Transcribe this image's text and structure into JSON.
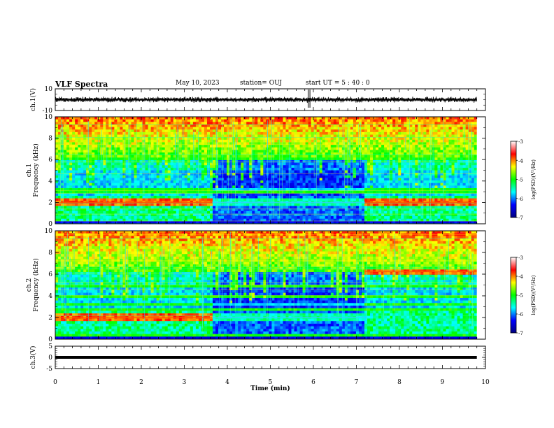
{
  "header": {
    "title": "VLF Spectra",
    "date": "May 10, 2023",
    "station": "station= OUJ",
    "start": "start  UT =   5 : 40 : 0"
  },
  "chart_data": [
    {
      "type": "line",
      "panel": "ch.1 waveform",
      "ylabel": "ch.1(V)",
      "ylim": [
        -10,
        10
      ],
      "yticks": [
        "10",
        "-10"
      ],
      "xlim": [
        0,
        10
      ],
      "mean_value": 0,
      "spikes_at_min": [
        5.88,
        5.92
      ]
    },
    {
      "type": "heatmap",
      "panel": "ch.1 spectrogram",
      "ylabel": "ch.1\nFrequency (kHz)",
      "ylim": [
        0,
        10
      ],
      "yticks": [
        "0",
        "2",
        "4",
        "6",
        "8",
        "10"
      ],
      "xlim": [
        0,
        10
      ],
      "data_end_min": 9.8,
      "colorbar": {
        "label": "log(PSD)(V²/Hz)",
        "range": [
          -7,
          -3
        ],
        "ticks": [
          "-3",
          "-4",
          "-5",
          "-6",
          "-7"
        ]
      },
      "regimes": [
        {
          "x": [
            0,
            3.65
          ],
          "level": "high",
          "band_kHz": [
            1.7,
            2.3
          ]
        },
        {
          "x": [
            3.65,
            7.2
          ],
          "level": "low",
          "band_kHz": [
            1.7,
            2.3
          ]
        },
        {
          "x": [
            7.2,
            9.8
          ],
          "level": "high",
          "band_kHz": [
            1.7,
            2.3
          ]
        }
      ]
    },
    {
      "type": "heatmap",
      "panel": "ch.2 spectrogram",
      "ylabel": "ch.2\nFrequency (kHz)",
      "ylim": [
        0,
        10
      ],
      "yticks": [
        "0",
        "2",
        "4",
        "6",
        "8",
        "10"
      ],
      "xlim": [
        0,
        10
      ],
      "data_end_min": 9.8,
      "colorbar": {
        "label": "log(PSD)(V²/Hz)",
        "range": [
          -7,
          -3
        ],
        "ticks": [
          "-3",
          "-4",
          "-5",
          "-6",
          "-7"
        ]
      },
      "regimes": [
        {
          "x": [
            0,
            3.65
          ],
          "level": "high",
          "band_kHz": [
            1.7,
            2.3
          ]
        },
        {
          "x": [
            3.65,
            7.2
          ],
          "level": "low",
          "band_kHz": [
            1.7,
            2.3
          ]
        },
        {
          "x": [
            7.2,
            9.8
          ],
          "level": "high",
          "band_kHz": [
            6.0,
            6.5
          ]
        }
      ]
    },
    {
      "type": "line",
      "panel": "ch.3 waveform",
      "ylabel": "ch.3(V)",
      "ylim": [
        -5,
        5
      ],
      "yticks": [
        "5",
        "0",
        "-5"
      ],
      "xlim": [
        0,
        10
      ],
      "value": 0
    }
  ],
  "xaxis": {
    "label": "Time (min)",
    "ticks": [
      "0",
      "1",
      "2",
      "3",
      "4",
      "5",
      "6",
      "7",
      "8",
      "9",
      "10"
    ]
  },
  "colors": {
    "colormap": [
      "#000080",
      "#0000ff",
      "#00ffff",
      "#00ff00",
      "#ffff00",
      "#ff0000",
      "#ffffff"
    ],
    "trace": "#000000"
  }
}
